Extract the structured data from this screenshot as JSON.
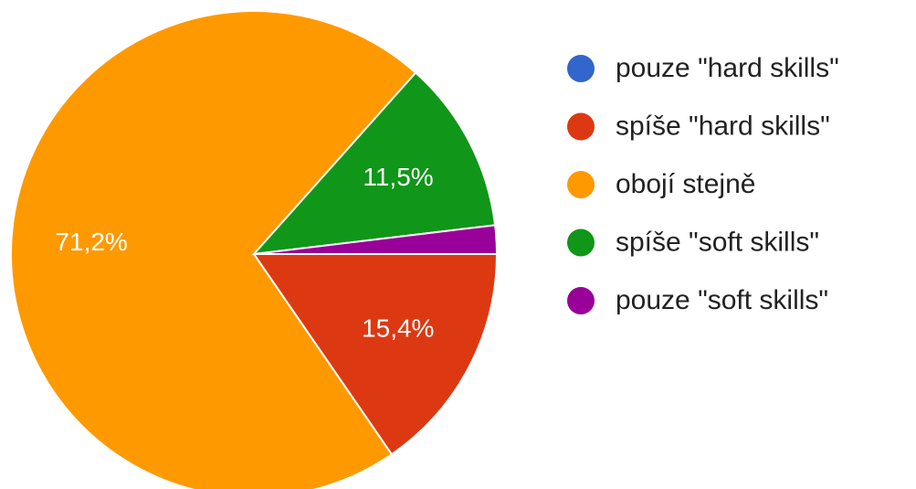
{
  "chart_data": {
    "type": "pie",
    "categories": [
      "pouze \"hard skills\"",
      "spíše \"hard skills\"",
      "obojí stejně",
      "spíše \"soft skills\"",
      "pouze \"soft skills\""
    ],
    "values": [
      0,
      15.4,
      71.2,
      11.5,
      1.9
    ],
    "value_labels": [
      null,
      "15,4%",
      "71,2%",
      "11,5%",
      null
    ],
    "colors": [
      "#3366cc",
      "#dc3912",
      "#ff9900",
      "#109618",
      "#990099"
    ],
    "legend": "right"
  }
}
